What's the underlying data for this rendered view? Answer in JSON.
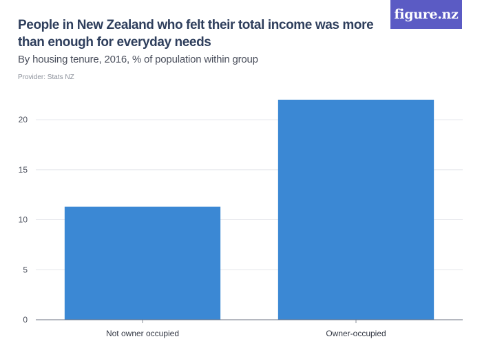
{
  "header": {
    "title": "People in New Zealand who felt their total income was more than enough for everyday needs",
    "subtitle": "By housing tenure, 2016, % of population within group",
    "provider": "Provider: Stats NZ",
    "logo_text": "figure.nz"
  },
  "colors": {
    "bar": "#3b88d4",
    "logo_bg": "#5b5bc4",
    "title": "#2e3e5c",
    "grid": "#e3e5ea"
  },
  "chart_data": {
    "type": "bar",
    "categories": [
      "Not owner occupied",
      "Owner-occupied"
    ],
    "values": [
      11.3,
      22.0
    ],
    "ylim": [
      0,
      22
    ],
    "yticks": [
      0,
      5,
      10,
      15,
      20
    ],
    "grid": true
  }
}
